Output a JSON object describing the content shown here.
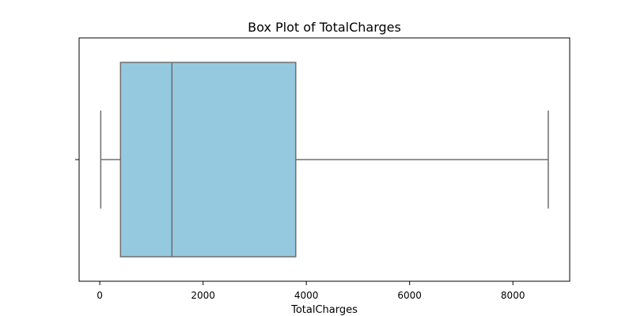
{
  "chart_data": {
    "type": "box",
    "title": "Box Plot of TotalCharges",
    "xlabel": "TotalCharges",
    "ylabel": "",
    "orientation": "horizontal",
    "xlim": [
      -400,
      9100
    ],
    "x_ticks": [
      0,
      2000,
      4000,
      6000,
      8000
    ],
    "x_tick_labels": [
      "0",
      "2000",
      "4000",
      "6000",
      "8000"
    ],
    "grid": false,
    "box": {
      "whisker_low": 18.8,
      "q1": 401.45,
      "median": 1397.48,
      "q3": 3794.74,
      "whisker_high": 8684.8
    },
    "colors": {
      "box_fill": "#95C9DF",
      "line": "#6E6E6E",
      "axis": "#000000"
    }
  }
}
